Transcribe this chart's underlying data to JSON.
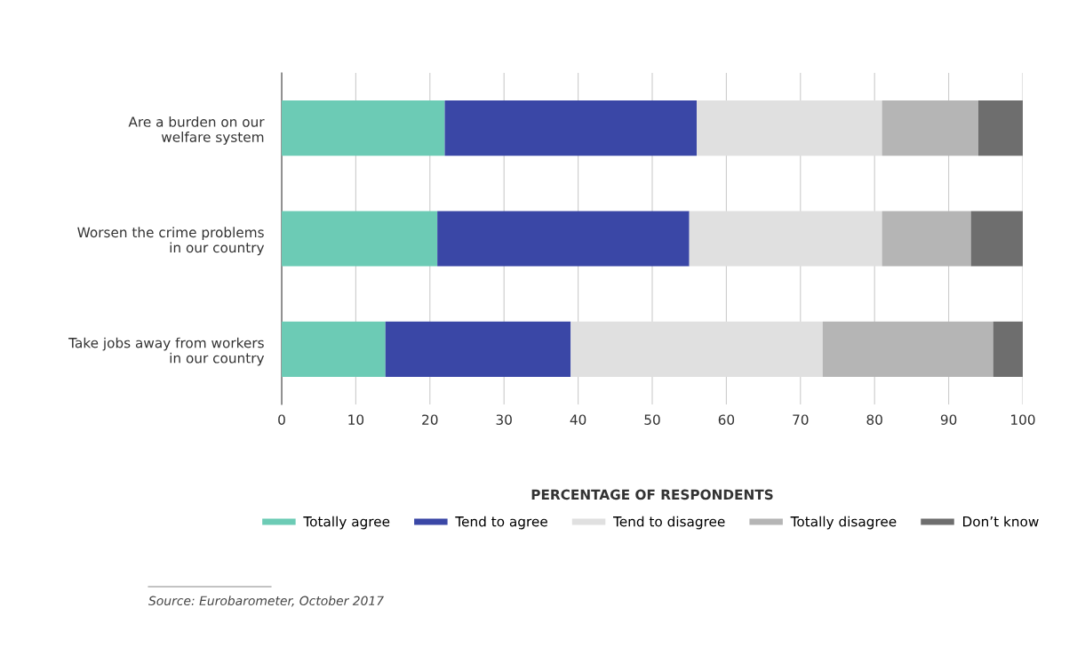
{
  "chart_data": {
    "type": "bar",
    "orientation": "horizontal",
    "stacked": true,
    "categories": [
      "Are a burden on our\nwelfare system",
      "Worsen the crime problems\nin our country",
      "Take jobs away from workers\nin our country"
    ],
    "series": [
      {
        "name": "Totally agree",
        "color": "#6ccbb5",
        "values": [
          22,
          21,
          14
        ]
      },
      {
        "name": "Tend to agree",
        "color": "#3a47a6",
        "values": [
          34,
          34,
          25
        ]
      },
      {
        "name": "Tend to disagree",
        "color": "#e0e0e0",
        "values": [
          25,
          26,
          34
        ]
      },
      {
        "name": "Totally disagree",
        "color": "#b5b5b5",
        "values": [
          13,
          12,
          23
        ]
      },
      {
        "name": "Don’t know",
        "color": "#6e6e6e",
        "values": [
          6,
          7,
          4
        ]
      }
    ],
    "xlim": [
      0,
      100
    ],
    "xticks": [
      0,
      10,
      20,
      30,
      40,
      50,
      60,
      70,
      80,
      90,
      100
    ],
    "xlabel": "PERCENTAGE OF RESPONDENTS",
    "grid": "x",
    "legend": "bottom",
    "annotations": [
      "Source: Eurobarometer, October 2017"
    ]
  }
}
